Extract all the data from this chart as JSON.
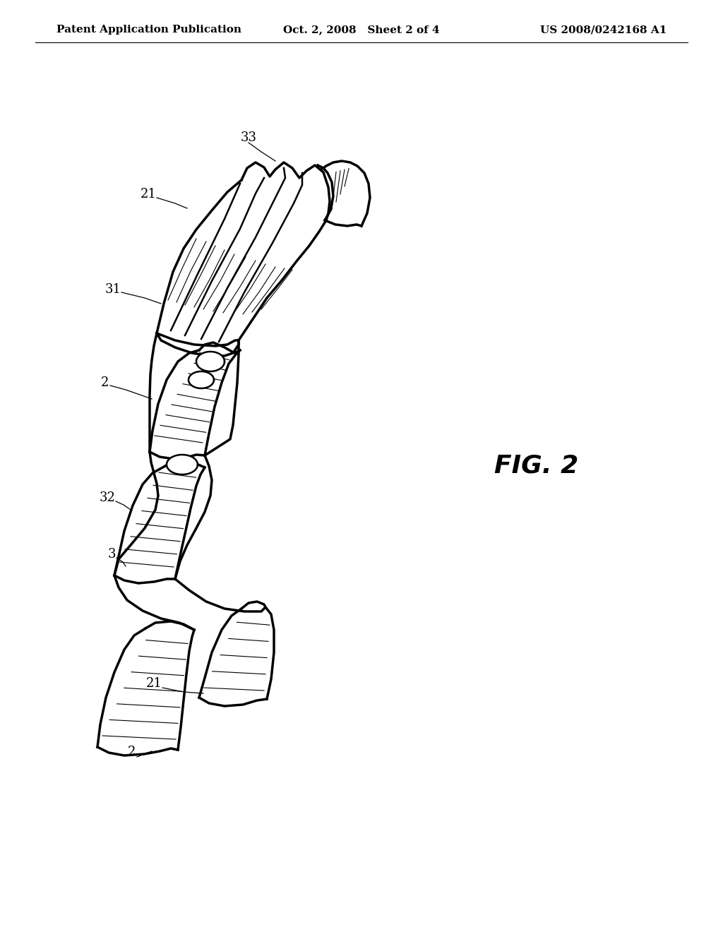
{
  "background_color": "#ffffff",
  "title_left": "Patent Application Publication",
  "title_center": "Oct. 2, 2008   Sheet 2 of 4",
  "title_right": "US 2008/0242168 A1",
  "fig_label": "FIG. 2",
  "title_fontsize": 11,
  "label_fontsize": 13,
  "fig_label_fontsize": 26
}
